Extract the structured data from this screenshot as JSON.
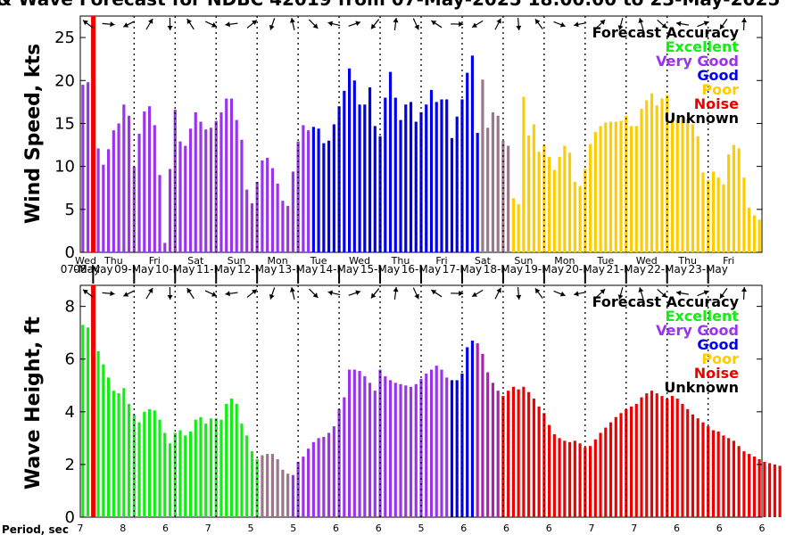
{
  "chart_data": {
    "title": "& Wave Forecast for NDBC 42019 from 07-May-2025 18:00:00 to 23-May-2025",
    "type": "bar",
    "date_labels": [
      "07-May",
      "08-May",
      "09-May",
      "10-May",
      "11-May",
      "12-May",
      "13-May",
      "14-May",
      "15-May",
      "16-May",
      "17-May",
      "18-May",
      "19-May",
      "20-May",
      "21-May",
      "22-May",
      "23-May"
    ],
    "day_labels": [
      "Wed",
      "Thu",
      "Fri",
      "Sat",
      "Sun",
      "Mon",
      "Tue",
      "Wed",
      "Thu",
      "Fri",
      "Sat",
      "Sun",
      "Mon",
      "Tue",
      "Wed",
      "Thu",
      "Fri"
    ],
    "legend": {
      "title": "Forecast Accuracy",
      "items": [
        {
          "label": "Excellent",
          "color": "#11ee11"
        },
        {
          "label": "Very Good",
          "color": "#9933ee"
        },
        {
          "label": "Good",
          "color": "#0000ee"
        },
        {
          "label": "Poor",
          "color": "#ffcc00"
        },
        {
          "label": "Noise",
          "color": "#ee0000"
        },
        {
          "label": "Unknown",
          "color": "#000000"
        }
      ]
    },
    "noise_marker_color": "#ee0000",
    "period_label": "Period, sec",
    "period_values": [
      "7",
      "8",
      "6",
      "7",
      "5",
      "5",
      "6",
      "6",
      "5",
      "6",
      "6",
      "6",
      "7",
      "7",
      "6",
      "6",
      "6"
    ],
    "wind": {
      "ylabel": "Wind Speed, kts",
      "ylim": [
        0,
        27.5
      ],
      "yticks": [
        "0",
        "5",
        "10",
        "15",
        "20",
        "25"
      ],
      "values": [
        19.5,
        19.8,
        0,
        12.1,
        10.2,
        12,
        14.2,
        15,
        17.2,
        15.9,
        10,
        13.8,
        16.4,
        17,
        14.8,
        9,
        1.1,
        9.7,
        16.6,
        12.9,
        12.4,
        14.4,
        16.3,
        15.2,
        14.3,
        14.5,
        15.3,
        16.3,
        17.9,
        17.9,
        15.4,
        13.1,
        7.3,
        5.7,
        8.2,
        10.7,
        11,
        9.8,
        8,
        6,
        5.4,
        9.4,
        12.9,
        14.8,
        14.2,
        14.6,
        14.4,
        12.7,
        13,
        14.9,
        17,
        18.8,
        21.4,
        20,
        17.2,
        17.2,
        19.2,
        14.7,
        13.5,
        18,
        21,
        18,
        15.4,
        17.2,
        17.5,
        15.2,
        16.3,
        17.2,
        18.9,
        17.5,
        17.8,
        17.8,
        13.3,
        15.8,
        17.8,
        20.9,
        22.9,
        13.9,
        20.1,
        14.5,
        16.3,
        15.9,
        13,
        12.4,
        6.3,
        5.6,
        18.1,
        13.6,
        14.9,
        11.7,
        12.5,
        11.1,
        9.6,
        11.1,
        12.4,
        11.6,
        8.2,
        7.7,
        9.7,
        12.6,
        14,
        14.7,
        15.1,
        15.2,
        15.2,
        15.3,
        15.9,
        14.7,
        14.7,
        16.7,
        17.7,
        18.5,
        17.1,
        17.9,
        18.3,
        15.5,
        15.4,
        15.6,
        15.5,
        14.9,
        13.5,
        9.3,
        8.4,
        9.4,
        8.7,
        7.9,
        11.4,
        12.5,
        12.1,
        8.7,
        5.2,
        4.3,
        3.8
      ],
      "segments": [
        {
          "start": 0,
          "end": 16,
          "color": "#9933ee"
        },
        {
          "start": 17,
          "end": 44,
          "color": "#9933ee"
        },
        {
          "start": 45,
          "end": 77,
          "color": "#0000ee"
        },
        {
          "start": 78,
          "end": 83,
          "color": "#997788"
        },
        {
          "start": 84,
          "end": 136,
          "color": "#ffcc00"
        }
      ]
    },
    "wave": {
      "ylabel": "Wave Height, ft",
      "ylim": [
        0,
        8.8
      ],
      "yticks": [
        "0",
        "2",
        "4",
        "6",
        "8"
      ],
      "values": [
        7.3,
        7.2,
        0,
        6.3,
        5.8,
        5.3,
        4.8,
        4.7,
        4.9,
        4.3,
        3.9,
        3.6,
        4,
        4.1,
        4.05,
        3.7,
        3.2,
        2.8,
        3.2,
        3.3,
        3.1,
        3.25,
        3.7,
        3.8,
        3.55,
        3.75,
        3.75,
        3.7,
        4.3,
        4.5,
        4.3,
        3.55,
        3.1,
        2.5,
        2.2,
        2.35,
        2.4,
        2.4,
        2.2,
        1.8,
        1.65,
        1.6,
        2.1,
        2.3,
        2.6,
        2.85,
        3,
        3.05,
        3.2,
        3.45,
        4.1,
        4.55,
        5.6,
        5.6,
        5.55,
        5.35,
        5.1,
        4.8,
        5.6,
        5.35,
        5.2,
        5.1,
        5.05,
        5,
        4.95,
        5.05,
        5.25,
        5.45,
        5.6,
        5.75,
        5.6,
        5.3,
        5.2,
        5.2,
        5.45,
        6.45,
        6.7,
        6.6,
        6.2,
        5.5,
        5.1,
        4.8,
        4.6,
        4.8,
        4.95,
        4.85,
        4.95,
        4.75,
        4.5,
        4.2,
        3.95,
        3.5,
        3.15,
        3,
        2.9,
        2.85,
        2.9,
        2.8,
        2.65,
        2.7,
        2.95,
        3.2,
        3.4,
        3.6,
        3.8,
        3.95,
        4.1,
        4.2,
        4.3,
        4.55,
        4.7,
        4.8,
        4.7,
        4.6,
        4.5,
        4.6,
        4.5,
        4.3,
        4.1,
        3.9,
        3.75,
        3.6,
        3.45,
        3.3,
        3.25,
        3.1,
        3,
        2.9,
        2.7,
        2.5,
        2.4,
        2.3,
        2.2,
        2.1,
        2.05,
        2,
        1.95
      ],
      "segments": [
        {
          "start": 0,
          "end": 34,
          "color": "#11ee11"
        },
        {
          "start": 35,
          "end": 40,
          "color": "#997788"
        },
        {
          "start": 41,
          "end": 71,
          "color": "#9933ee"
        },
        {
          "start": 72,
          "end": 76,
          "color": "#0000ee"
        },
        {
          "start": 77,
          "end": 81,
          "color": "#aa22aa"
        },
        {
          "start": 82,
          "end": 136,
          "color": "#ee0000"
        }
      ]
    },
    "dotted_lines_at": [
      6,
      5,
      4,
      3,
      2,
      1,
      0
    ],
    "solid_lines_at": []
  }
}
